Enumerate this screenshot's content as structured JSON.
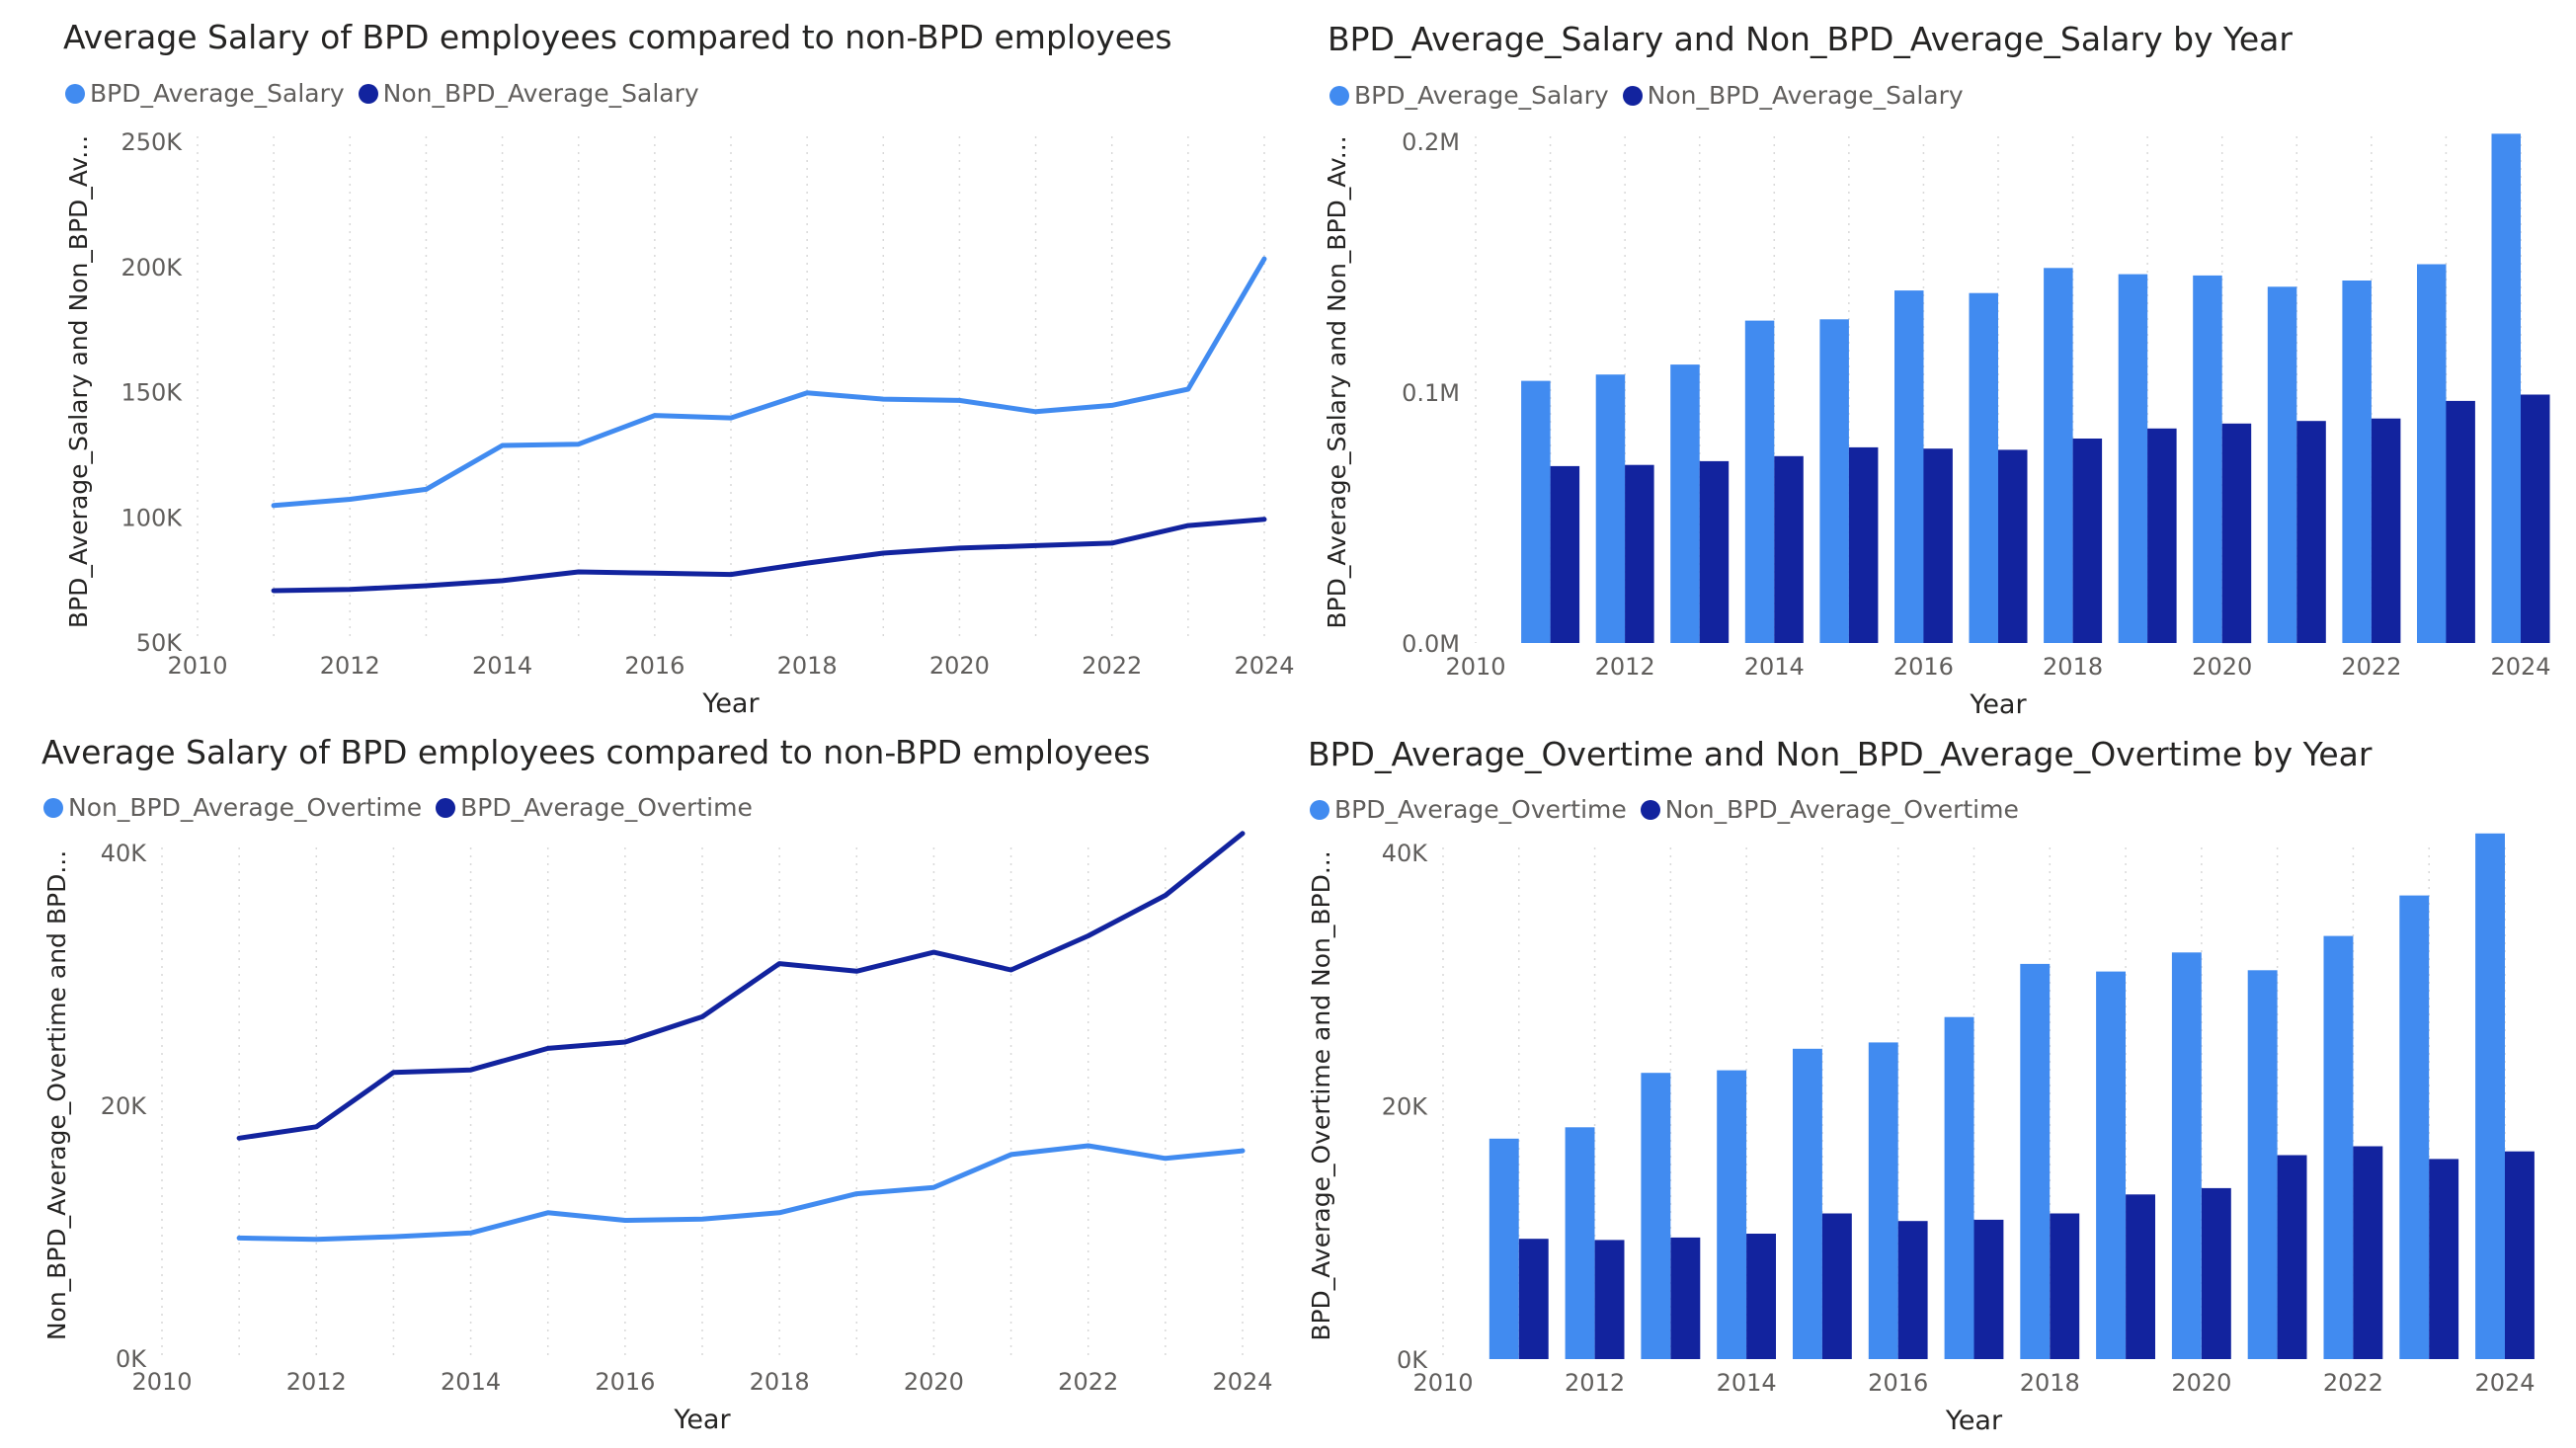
{
  "colors": {
    "light": "#418BF0",
    "dark": "#12239E",
    "axis_text": "#605e5c",
    "grid": "#d9d9d9",
    "title_text": "#252423"
  },
  "chart_data": [
    {
      "type": "line",
      "title": "Average Salary of BPD employees compared to non-BPD employees",
      "xlabel": "Year",
      "ylabel": "BPD_Average_Salary and Non_BPD_Av...",
      "xlim": [
        2010,
        2024
      ],
      "ylim": [
        50000,
        250000
      ],
      "x_ticks": [
        "2010",
        "2012",
        "2014",
        "2016",
        "2018",
        "2020",
        "2022",
        "2024"
      ],
      "y_ticks": [
        "50K",
        "100K",
        "150K",
        "200K",
        "250K"
      ],
      "x": [
        2011,
        2012,
        2013,
        2014,
        2015,
        2016,
        2017,
        2018,
        2019,
        2020,
        2021,
        2022,
        2023,
        2024
      ],
      "series": [
        {
          "name": "BPD_Average_Salary",
          "color": "#418BF0",
          "values": [
            104500,
            107000,
            111000,
            128500,
            129000,
            140500,
            139500,
            149500,
            147000,
            146500,
            142000,
            144500,
            151000,
            203000
          ]
        },
        {
          "name": "Non_BPD_Average_Salary",
          "color": "#12239E",
          "values": [
            70500,
            71000,
            72500,
            74500,
            78000,
            77500,
            77000,
            81500,
            85500,
            87500,
            88500,
            89500,
            96500,
            99000
          ]
        }
      ]
    },
    {
      "type": "bar",
      "title": "BPD_Average_Salary and Non_BPD_Average_Salary by Year",
      "xlabel": "Year",
      "ylabel": "BPD_Average_Salary and Non_BPD_Av...",
      "xlim": [
        2010,
        2024
      ],
      "ylim": [
        0,
        0.2
      ],
      "x_ticks": [
        "2010",
        "2012",
        "2014",
        "2016",
        "2018",
        "2020",
        "2022",
        "2024"
      ],
      "y_ticks": [
        "0.0M",
        "0.1M",
        "0.2M"
      ],
      "categories": [
        2011,
        2012,
        2013,
        2014,
        2015,
        2016,
        2017,
        2018,
        2019,
        2020,
        2021,
        2022,
        2023,
        2024
      ],
      "series": [
        {
          "name": "BPD_Average_Salary",
          "color": "#418BF0",
          "values": [
            0.1045,
            0.107,
            0.111,
            0.1285,
            0.129,
            0.1405,
            0.1395,
            0.1495,
            0.147,
            0.1465,
            0.142,
            0.1445,
            0.151,
            0.203
          ]
        },
        {
          "name": "Non_BPD_Average_Salary",
          "color": "#12239E",
          "values": [
            0.0705,
            0.071,
            0.0725,
            0.0745,
            0.078,
            0.0775,
            0.077,
            0.0815,
            0.0855,
            0.0875,
            0.0885,
            0.0895,
            0.0965,
            0.099
          ]
        }
      ]
    },
    {
      "type": "line",
      "title": "Average Salary of BPD employees compared to non-BPD employees",
      "xlabel": "Year",
      "ylabel": "Non_BPD_Average_Overtime and BPD...",
      "xlim": [
        2010,
        2024
      ],
      "ylim": [
        0,
        40000
      ],
      "x_ticks": [
        "2010",
        "2012",
        "2014",
        "2016",
        "2018",
        "2020",
        "2022",
        "2024"
      ],
      "y_ticks": [
        "0K",
        "20K",
        "40K"
      ],
      "x": [
        2011,
        2012,
        2013,
        2014,
        2015,
        2016,
        2017,
        2018,
        2019,
        2020,
        2021,
        2022,
        2023,
        2024
      ],
      "series": [
        {
          "name": "Non_BPD_Average_Overtime",
          "color": "#418BF0",
          "values": [
            9500,
            9400,
            9600,
            9900,
            11500,
            10900,
            11000,
            11500,
            13000,
            13500,
            16100,
            16800,
            15800,
            16400
          ]
        },
        {
          "name": "BPD_Average_Overtime",
          "color": "#12239E",
          "values": [
            17400,
            18300,
            22600,
            22800,
            24500,
            25000,
            27000,
            31200,
            30600,
            32100,
            30700,
            33400,
            36600,
            41500
          ]
        }
      ]
    },
    {
      "type": "bar",
      "title": "BPD_Average_Overtime and Non_BPD_Average_Overtime by Year",
      "xlabel": "Year",
      "ylabel": "BPD_Average_Overtime and Non_BPD...",
      "xlim": [
        2010,
        2024
      ],
      "ylim": [
        0,
        40000
      ],
      "x_ticks": [
        "2010",
        "2012",
        "2014",
        "2016",
        "2018",
        "2020",
        "2022",
        "2024"
      ],
      "y_ticks": [
        "0K",
        "20K",
        "40K"
      ],
      "categories": [
        2011,
        2012,
        2013,
        2014,
        2015,
        2016,
        2017,
        2018,
        2019,
        2020,
        2021,
        2022,
        2023,
        2024
      ],
      "series": [
        {
          "name": "BPD_Average_Overtime",
          "color": "#418BF0",
          "values": [
            17400,
            18300,
            22600,
            22800,
            24500,
            25000,
            27000,
            31200,
            30600,
            32100,
            30700,
            33400,
            36600,
            41500
          ]
        },
        {
          "name": "Non_BPD_Average_Overtime",
          "color": "#12239E",
          "values": [
            9500,
            9400,
            9600,
            9900,
            11500,
            10900,
            11000,
            11500,
            13000,
            13500,
            16100,
            16800,
            15800,
            16400
          ]
        }
      ]
    }
  ]
}
